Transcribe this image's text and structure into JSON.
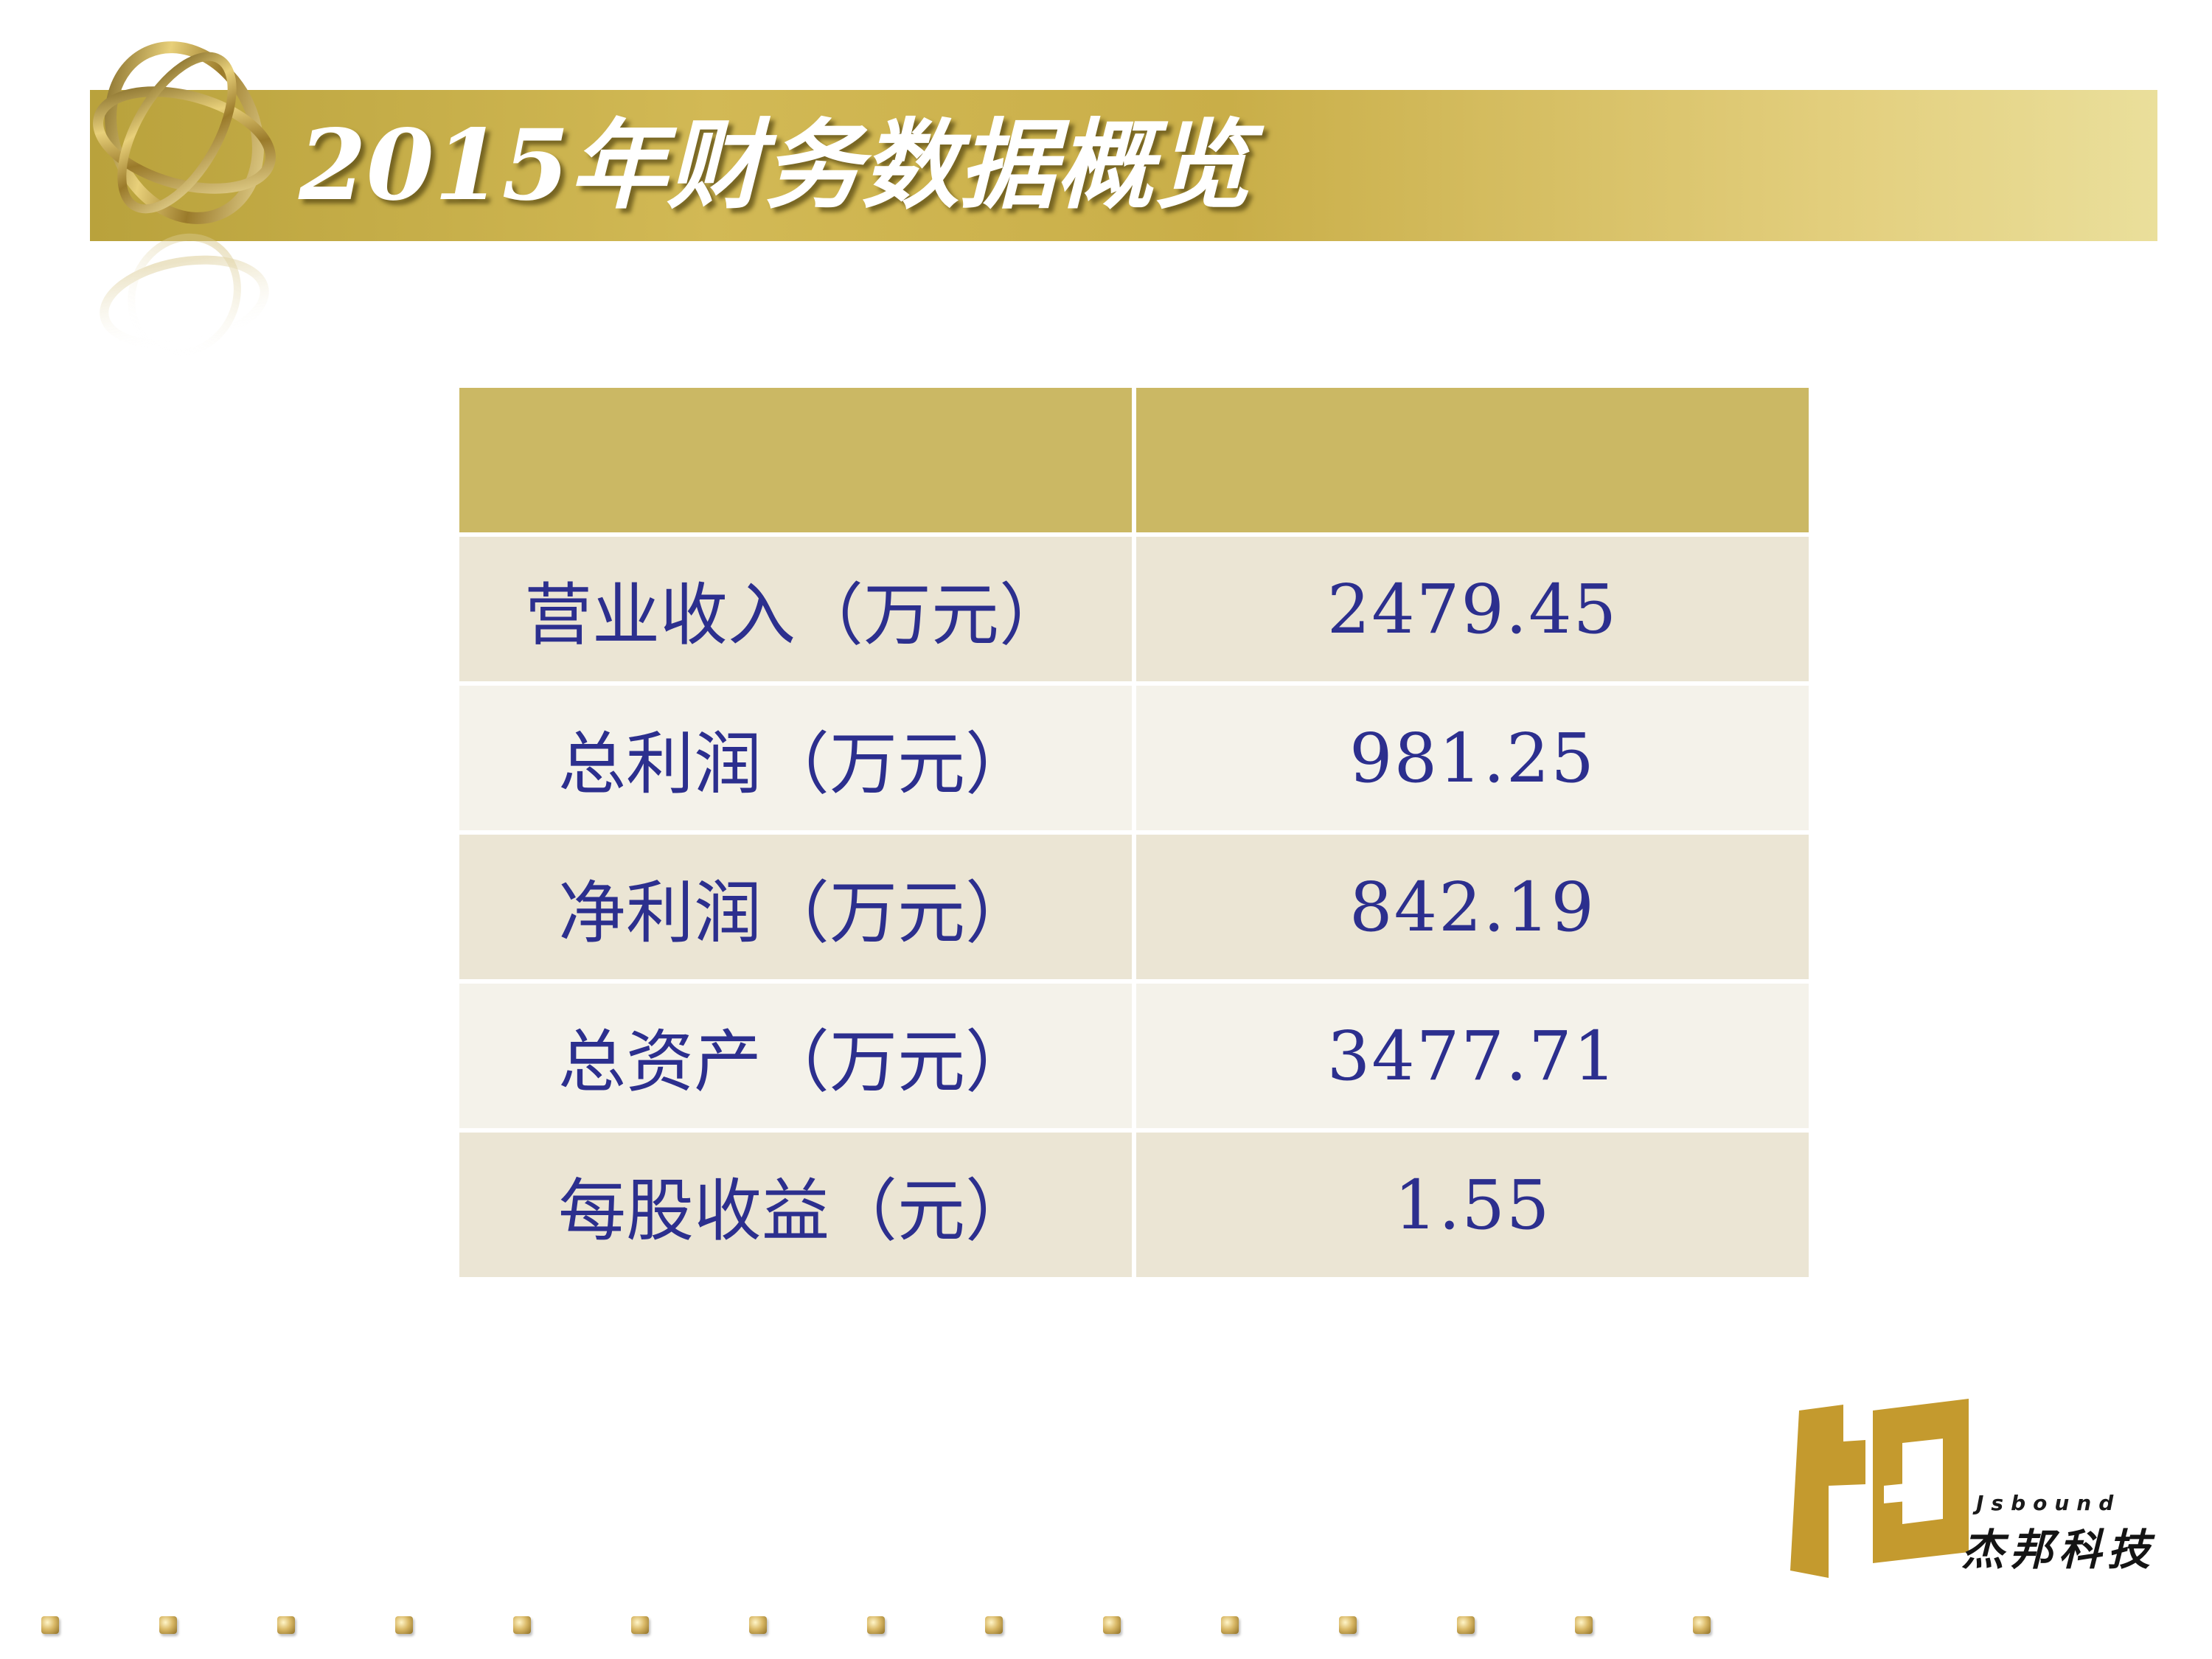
{
  "slide": {
    "title": "2015年财务数据概览"
  },
  "table": {
    "header": [
      "",
      ""
    ],
    "rows": [
      {
        "label": "营业收入（万元）",
        "value": "2479.45"
      },
      {
        "label": "总利润（万元）",
        "value": "981.25"
      },
      {
        "label": "净利润（万元）",
        "value": "842.19"
      },
      {
        "label": "总资产（万元）",
        "value": "3477.71"
      },
      {
        "label": "每股收益（元）",
        "value": "1.55"
      }
    ]
  },
  "brand": {
    "name_en": "Jsbound",
    "name_cn": "杰邦科技"
  },
  "colors": {
    "accent_gold": "#cbb864",
    "text_blue": "#2c2f8e"
  }
}
